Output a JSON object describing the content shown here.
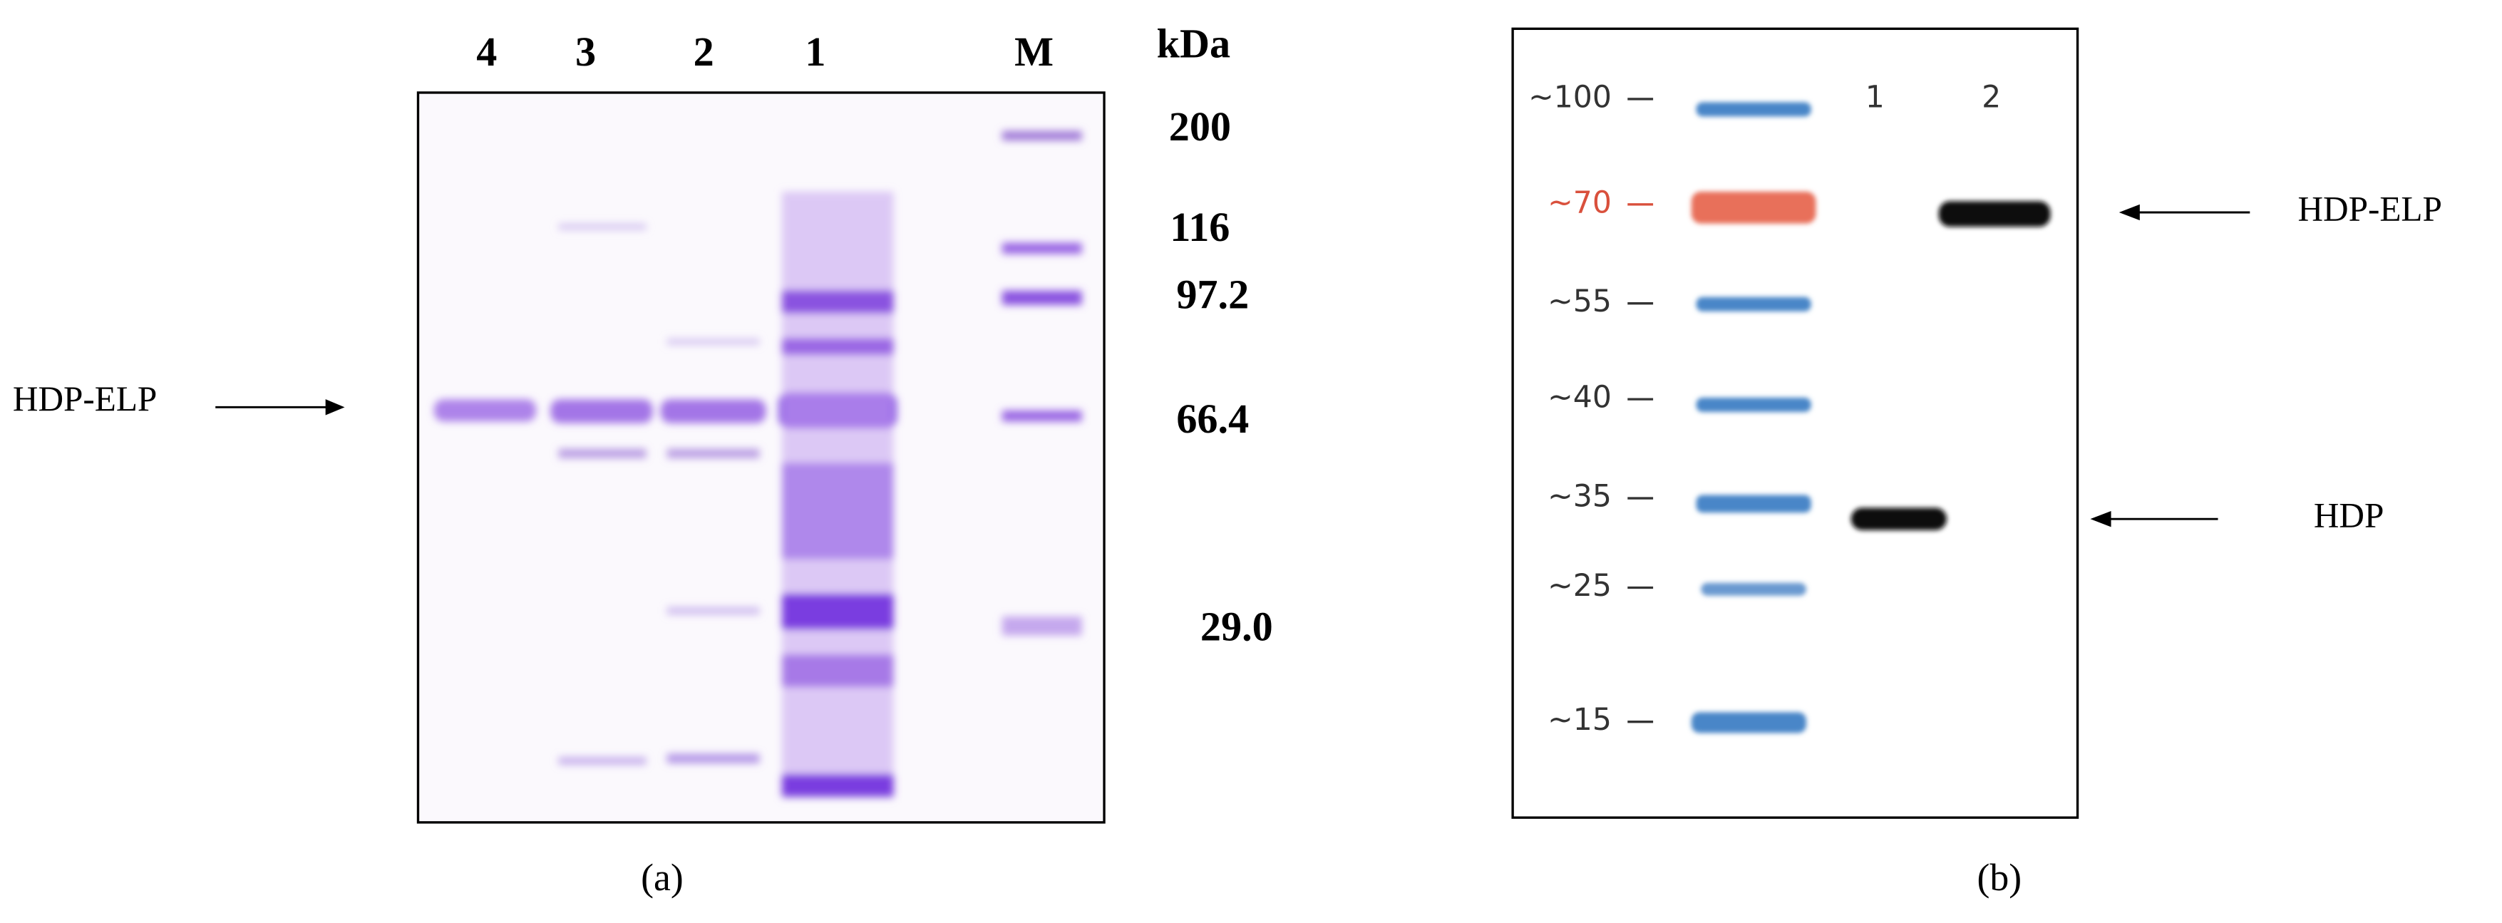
{
  "panel_a": {
    "lanes": [
      "4",
      "3",
      "2",
      "1",
      "M"
    ],
    "unit": "kDa",
    "markers": [
      "200",
      "116",
      "97.2",
      "66.4",
      "29.0"
    ],
    "arrow_label": "HDP-ELP",
    "caption": "(a)"
  },
  "panel_b": {
    "markers": [
      "~100",
      "~70",
      "~55",
      "~40",
      "~35",
      "~25",
      "~15"
    ],
    "lanes": [
      "1",
      "2"
    ],
    "arrows": [
      "HDP-ELP",
      "HDP"
    ],
    "caption": "(b)"
  }
}
